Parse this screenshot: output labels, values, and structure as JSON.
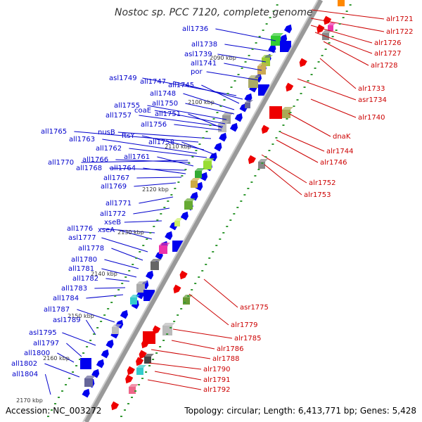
{
  "title": "Nostoc sp. PCC 7120, complete genome",
  "footer": {
    "accession": "Accession: NC_003272",
    "topology": "Topology: circular; Length: 6,413,771 bp; Genes: 5,428"
  },
  "colors": {
    "minus_label": "#0000cc",
    "plus_label": "#cc0000",
    "minus_arrow": "#0000ee",
    "plus_arrow": "#ee0000",
    "backbone": "#999999",
    "tick": "#339933"
  },
  "kbp_marks": [
    "2090 kbp",
    "2100 kbp",
    "2110 kbp",
    "2120 kbp",
    "2130 kbp",
    "2140 kbp",
    "2150 kbp",
    "2160 kbp",
    "2170 kbp"
  ],
  "minus_genes": [
    "all1736",
    "all1738",
    "asl1739",
    "all1741",
    "por",
    "asl1749",
    "all1747",
    "all1745",
    "all1748",
    "all1750",
    "all1755",
    "coaE",
    "all1757",
    "all1751",
    "all1756",
    "all1765",
    "nusB",
    "ftsY",
    "all1763",
    "all1758",
    "all1762",
    "all1770",
    "all1766",
    "all1761",
    "all1768",
    "all1764",
    "all1767",
    "all1769",
    "all1771",
    "all1772",
    "xseB",
    "all1776",
    "xseA",
    "asl1777",
    "all1778",
    "all1780",
    "all1781",
    "all1782",
    "all1783",
    "all1784",
    "all1787",
    "asl1789",
    "asl1795",
    "all1797",
    "all1800",
    "all1802",
    "all1804"
  ],
  "plus_genes": [
    "alr1721",
    "alr1722",
    "alr1726",
    "alr1727",
    "alr1728",
    "alr1733",
    "asr1734",
    "alr1740",
    "dnaK",
    "alr1744",
    "alr1746",
    "alr1752",
    "alr1753",
    "asr1775",
    "alr1779",
    "alr1785",
    "alr1786",
    "alr1788",
    "alr1790",
    "alr1791",
    "alr1792"
  ]
}
